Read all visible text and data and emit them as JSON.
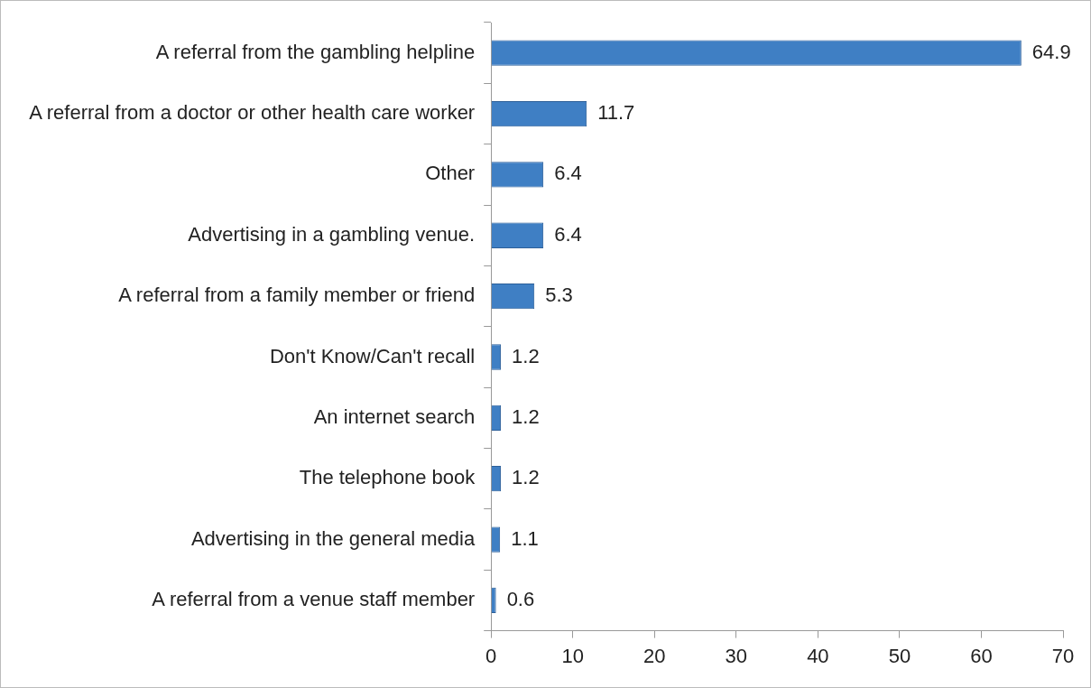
{
  "chart_data": {
    "type": "bar",
    "orientation": "horizontal",
    "categories": [
      "A referral from the gambling helpline",
      "A referral from a doctor or other health care worker",
      "Other",
      "Advertising in a gambling venue.",
      "A referral from a family member or friend",
      "Don't Know/Can't recall",
      "An internet search",
      "The telephone book",
      "Advertising in the general media",
      "A referral from a venue staff member"
    ],
    "values": [
      64.9,
      11.7,
      6.4,
      6.4,
      5.3,
      1.2,
      1.2,
      1.2,
      1.1,
      0.6
    ],
    "color": "#3f7fc4",
    "xlim": [
      0,
      70
    ],
    "xticks": [
      0,
      10,
      20,
      30,
      40,
      50,
      60,
      70
    ],
    "data_labels": true
  }
}
